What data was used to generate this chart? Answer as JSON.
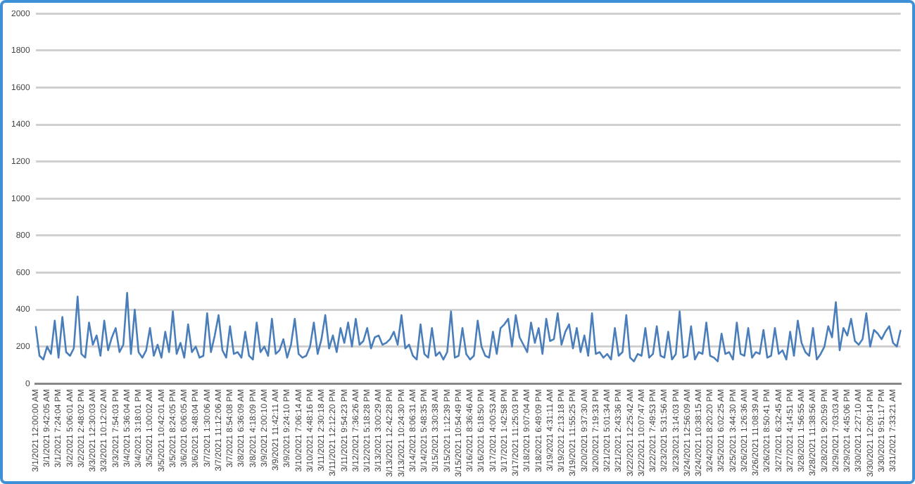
{
  "chart_data": {
    "type": "line",
    "color": "#4a7ebb",
    "grid": "y",
    "legend": false,
    "marker": "none",
    "ylim": [
      0,
      2000
    ],
    "yticks": [
      0,
      200,
      400,
      600,
      800,
      1000,
      1200,
      1400,
      1600,
      1800,
      2000
    ],
    "categories": [
      "3/1/2021 12:00:00 AM",
      null,
      null,
      "3/1/2021 9:42:05 AM",
      null,
      null,
      "3/1/2021 7:24:04 PM",
      null,
      null,
      "3/2/2021 5:06:01 AM",
      null,
      null,
      "3/2/2021 2:48:02 PM",
      null,
      null,
      "3/3/2021 12:30:03 AM",
      null,
      null,
      "3/3/2021 10:12:02 AM",
      null,
      null,
      "3/3/2021 7:54:03 PM",
      null,
      null,
      "3/4/2021 5:36:04 AM",
      null,
      null,
      "3/4/2021 3:18:01 PM",
      null,
      null,
      "3/5/2021 1:00:02 AM",
      null,
      null,
      "3/5/2021 10:42:01 AM",
      null,
      null,
      "3/5/2021 8:24:05 PM",
      null,
      null,
      "3/6/2021 6:06:05 AM",
      null,
      null,
      "3/6/2021 3:48:04 PM",
      null,
      null,
      "3/7/2021 1:30:06 AM",
      null,
      null,
      "3/7/2021 11:12:06 AM",
      null,
      null,
      "3/7/2021 8:54:08 PM",
      null,
      null,
      "3/8/2021 6:36:09 AM",
      null,
      null,
      "3/8/2021 4:18:09 PM",
      null,
      null,
      "3/9/2021 2:00:10 AM",
      null,
      null,
      "3/9/2021 11:42:11 AM",
      null,
      null,
      "3/9/2021 9:24:10 PM",
      null,
      null,
      "3/10/2021 7:06:14 AM",
      null,
      null,
      "3/10/2021 4:48:16 PM",
      null,
      null,
      "3/11/2021 2:30:18 AM",
      null,
      null,
      "3/11/2021 12:12:20 PM",
      null,
      null,
      "3/11/2021 9:54:23 PM",
      null,
      null,
      "3/12/2021 7:36:26 AM",
      null,
      null,
      "3/12/2021 5:18:28 PM",
      null,
      null,
      "3/13/2021 3:00:29 AM",
      null,
      null,
      "3/13/2021 12:42:28 PM",
      null,
      null,
      "3/13/2021 10:24:30 PM",
      null,
      null,
      "3/14/2021 8:06:31 AM",
      null,
      null,
      "3/14/2021 5:48:35 PM",
      null,
      null,
      "3/15/2021 3:30:38 AM",
      null,
      null,
      "3/15/2021 1:12:39 PM",
      null,
      null,
      "3/15/2021 10:54:49 PM",
      null,
      null,
      "3/16/2021 8:36:46 AM",
      null,
      null,
      "3/16/2021 6:18:50 PM",
      null,
      null,
      "3/17/2021 4:00:53 AM",
      null,
      null,
      "3/17/2021 1:42:58 PM",
      null,
      null,
      "3/17/2021 11:25:03 PM",
      null,
      null,
      "3/18/2021 9:07:04 AM",
      null,
      null,
      "3/18/2021 6:49:09 PM",
      null,
      null,
      "3/19/2021 4:31:11 AM",
      null,
      null,
      "3/19/2021 2:13:18 PM",
      null,
      null,
      "3/19/2021 11:55:25 PM",
      null,
      null,
      "3/20/2021 9:37:30 AM",
      null,
      null,
      "3/20/2021 7:19:33 PM",
      null,
      null,
      "3/21/2021 5:01:34 AM",
      null,
      null,
      "3/21/2021 2:43:36 PM",
      null,
      null,
      "3/22/2021 12:25:42 AM",
      null,
      null,
      "3/22/2021 10:07:47 AM",
      null,
      null,
      "3/22/2021 7:49:53 PM",
      null,
      null,
      "3/23/2021 5:31:56 AM",
      null,
      null,
      "3/23/2021 3:14:03 PM",
      null,
      null,
      "3/24/2021 12:56:09 AM",
      null,
      null,
      "3/24/2021 10:38:15 AM",
      null,
      null,
      "3/24/2021 8:20:20 PM",
      null,
      null,
      "3/25/2021 6:02:25 AM",
      null,
      null,
      "3/25/2021 3:44:30 PM",
      null,
      null,
      "3/26/2021 1:26:36 AM",
      null,
      null,
      "3/26/2021 11:08:39 AM",
      null,
      null,
      "3/26/2021 8:50:41 PM",
      null,
      null,
      "3/27/2021 6:32:45 AM",
      null,
      null,
      "3/27/2021 4:14:51 PM",
      null,
      null,
      "3/28/2021 1:56:55 AM",
      null,
      null,
      "3/28/2021 11:38:56 AM",
      null,
      null,
      "3/28/2021 9:20:59 PM",
      null,
      null,
      "3/29/2021 7:03:03 AM",
      null,
      null,
      "3/29/2021 4:45:06 PM",
      null,
      null,
      "3/30/2021 2:27:10 AM",
      null,
      null,
      "3/30/2021 12:09:14 PM",
      null,
      null,
      "3/30/2021 9:51:17 PM",
      null,
      null,
      "3/31/2021 7:33:21 AM",
      null,
      null
    ],
    "values": [
      310,
      150,
      130,
      200,
      160,
      340,
      140,
      360,
      170,
      150,
      190,
      470,
      160,
      140,
      330,
      210,
      260,
      150,
      340,
      180,
      250,
      300,
      170,
      210,
      490,
      160,
      400,
      170,
      140,
      180,
      300,
      150,
      210,
      140,
      280,
      170,
      390,
      160,
      220,
      140,
      320,
      170,
      200,
      140,
      150,
      380,
      170,
      260,
      370,
      180,
      140,
      310,
      160,
      170,
      140,
      280,
      150,
      130,
      330,
      170,
      200,
      150,
      350,
      160,
      180,
      240,
      140,
      210,
      350,
      160,
      140,
      150,
      200,
      330,
      160,
      240,
      370,
      190,
      260,
      170,
      300,
      220,
      330,
      200,
      350,
      210,
      230,
      300,
      190,
      250,
      260,
      210,
      220,
      240,
      280,
      210,
      370,
      190,
      210,
      150,
      130,
      320,
      160,
      140,
      300,
      150,
      170,
      130,
      170,
      390,
      140,
      150,
      300,
      160,
      130,
      150,
      340,
      200,
      150,
      140,
      280,
      160,
      300,
      320,
      350,
      200,
      370,
      250,
      210,
      170,
      330,
      220,
      300,
      160,
      350,
      230,
      240,
      380,
      210,
      280,
      320,
      190,
      300,
      170,
      260,
      150,
      380,
      160,
      170,
      140,
      160,
      130,
      300,
      150,
      170,
      370,
      140,
      120,
      160,
      150,
      300,
      140,
      160,
      310,
      150,
      140,
      280,
      130,
      160,
      390,
      140,
      150,
      310,
      130,
      170,
      160,
      330,
      150,
      140,
      120,
      270,
      160,
      170,
      130,
      330,
      160,
      150,
      300,
      140,
      170,
      160,
      290,
      140,
      150,
      300,
      160,
      180,
      130,
      280,
      150,
      340,
      220,
      170,
      150,
      300,
      130,
      160,
      200,
      310,
      250,
      440,
      180,
      300,
      260,
      350,
      230,
      210,
      240,
      380,
      200,
      290,
      270,
      240,
      280,
      310,
      220,
      200,
      290
    ]
  }
}
